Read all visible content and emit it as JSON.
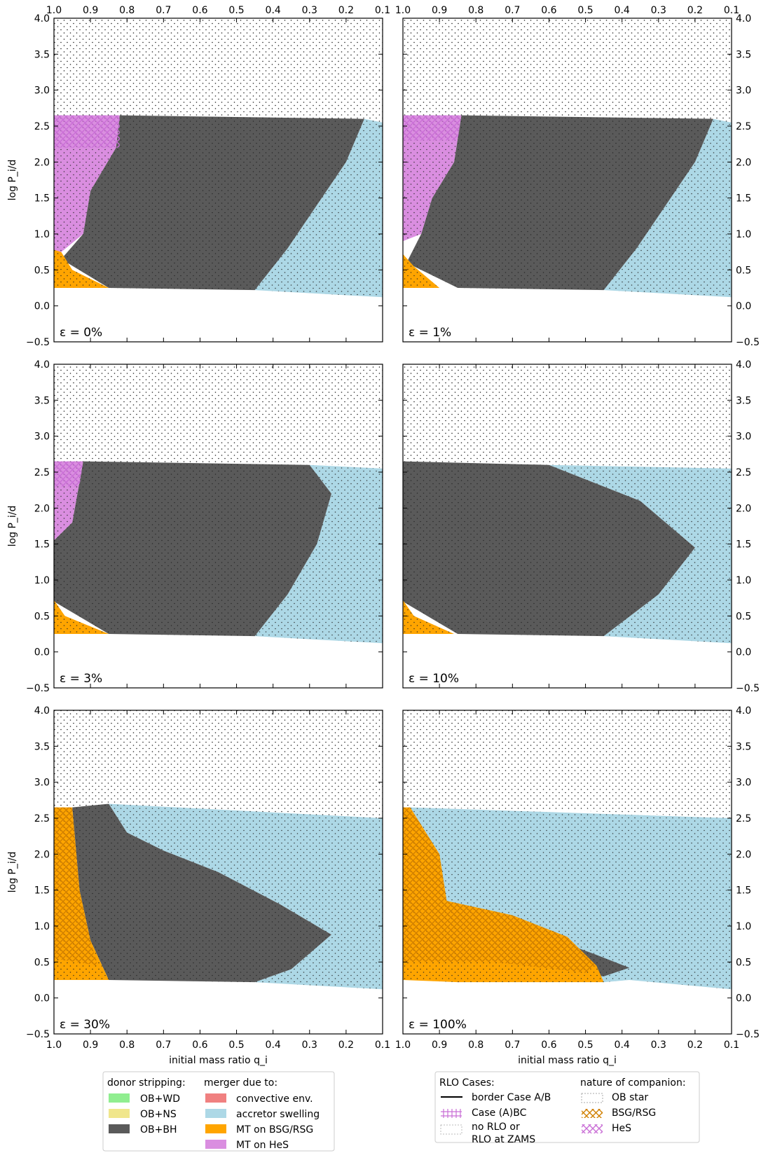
{
  "chart_data": {
    "type": "area",
    "layout": "3 rows x 2 columns of panels",
    "xlabel": "initial mass ratio q_i",
    "ylabel": "log P_i/d",
    "xlim": [
      1.0,
      0.1
    ],
    "ylim": [
      -0.5,
      4.0
    ],
    "x_ticks": [
      "1.0",
      "0.9",
      "0.8",
      "0.7",
      "0.6",
      "0.5",
      "0.4",
      "0.3",
      "0.2",
      "0.1"
    ],
    "y_ticks": [
      "-0.5",
      "0.0",
      "0.5",
      "1.0",
      "1.5",
      "2.0",
      "2.5",
      "3.0",
      "3.5",
      "4.0"
    ],
    "grid": false,
    "colors": {
      "ob_wd": "#90ee90",
      "ob_ns": "#f0e68c",
      "ob_bh": "#5a5a5a",
      "convective_env": "#f08080",
      "accretor_swelling": "#add8e6",
      "mt_bsg_rsg": "#ffa500",
      "mt_hes": "#da8ee0",
      "case_abc": "#c96fd6",
      "companion_bsg_rsg": "#e08a00",
      "companion_hes": "#c0a0d8"
    },
    "panels": [
      {
        "label": "ε = 0%",
        "regions": {
          "ob_star_region": [
            [
              1.0,
              4.0
            ],
            [
              0.1,
              4.0
            ],
            [
              0.1,
              2.55
            ],
            [
              0.15,
              2.6
            ],
            [
              1.0,
              2.65
            ]
          ],
          "ob_bh": [
            [
              0.82,
              2.65
            ],
            [
              0.15,
              2.6
            ],
            [
              0.2,
              2.0
            ],
            [
              0.28,
              1.4
            ],
            [
              0.36,
              0.8
            ],
            [
              0.45,
              0.22
            ],
            [
              0.85,
              0.25
            ],
            [
              0.98,
              0.65
            ],
            [
              0.92,
              1.0
            ],
            [
              0.9,
              1.6
            ],
            [
              0.83,
              2.2
            ]
          ],
          "accretor_swelling": [
            [
              0.15,
              2.6
            ],
            [
              0.1,
              2.55
            ],
            [
              0.1,
              0.12
            ],
            [
              0.45,
              0.22
            ],
            [
              0.36,
              0.8
            ],
            [
              0.28,
              1.4
            ],
            [
              0.2,
              2.0
            ]
          ],
          "mt_hes": [
            [
              1.0,
              2.65
            ],
            [
              0.82,
              2.65
            ],
            [
              0.83,
              2.2
            ],
            [
              0.9,
              1.6
            ],
            [
              0.92,
              1.0
            ],
            [
              0.98,
              0.75
            ],
            [
              1.0,
              0.78
            ]
          ],
          "mt_bsg_rsg": [
            [
              1.0,
              0.78
            ],
            [
              0.98,
              0.75
            ],
            [
              0.95,
              0.5
            ],
            [
              0.85,
              0.25
            ],
            [
              1.0,
              0.25
            ]
          ],
          "hes_hatch": [
            [
              1.0,
              2.65
            ],
            [
              0.82,
              2.65
            ],
            [
              0.82,
              2.2
            ],
            [
              1.0,
              2.2
            ]
          ]
        }
      },
      {
        "label": "ε = 1%",
        "regions": {
          "ob_star_region": [
            [
              1.0,
              4.0
            ],
            [
              0.1,
              4.0
            ],
            [
              0.1,
              2.55
            ],
            [
              0.15,
              2.6
            ],
            [
              1.0,
              2.65
            ]
          ],
          "ob_bh": [
            [
              0.84,
              2.65
            ],
            [
              0.15,
              2.6
            ],
            [
              0.2,
              2.0
            ],
            [
              0.28,
              1.4
            ],
            [
              0.36,
              0.8
            ],
            [
              0.45,
              0.22
            ],
            [
              0.85,
              0.25
            ],
            [
              0.99,
              0.6
            ],
            [
              0.95,
              1.0
            ],
            [
              0.92,
              1.5
            ],
            [
              0.86,
              2.0
            ]
          ],
          "accretor_swelling": [
            [
              0.15,
              2.6
            ],
            [
              0.1,
              2.55
            ],
            [
              0.1,
              0.12
            ],
            [
              0.45,
              0.22
            ],
            [
              0.36,
              0.8
            ],
            [
              0.28,
              1.4
            ],
            [
              0.2,
              2.0
            ]
          ],
          "mt_hes": [
            [
              1.0,
              2.65
            ],
            [
              0.84,
              2.65
            ],
            [
              0.86,
              2.0
            ],
            [
              0.92,
              1.5
            ],
            [
              0.95,
              1.0
            ],
            [
              1.0,
              0.9
            ]
          ],
          "mt_bsg_rsg": [
            [
              1.0,
              0.72
            ],
            [
              0.97,
              0.55
            ],
            [
              0.9,
              0.25
            ],
            [
              1.0,
              0.25
            ]
          ],
          "hes_hatch": [
            [
              1.0,
              2.65
            ],
            [
              0.84,
              2.65
            ],
            [
              0.85,
              2.3
            ],
            [
              1.0,
              2.3
            ]
          ]
        }
      },
      {
        "label": "ε = 3%",
        "regions": {
          "ob_star_region": [
            [
              1.0,
              4.0
            ],
            [
              0.1,
              4.0
            ],
            [
              0.1,
              2.55
            ],
            [
              0.15,
              2.6
            ],
            [
              1.0,
              2.65
            ]
          ],
          "ob_bh": [
            [
              0.92,
              2.65
            ],
            [
              0.3,
              2.6
            ],
            [
              0.24,
              2.2
            ],
            [
              0.28,
              1.5
            ],
            [
              0.36,
              0.8
            ],
            [
              0.45,
              0.22
            ],
            [
              0.85,
              0.25
            ],
            [
              1.0,
              0.7
            ],
            [
              1.0,
              1.55
            ],
            [
              0.95,
              1.8
            ]
          ],
          "accretor_swelling": [
            [
              0.3,
              2.6
            ],
            [
              0.1,
              2.55
            ],
            [
              0.1,
              0.12
            ],
            [
              0.45,
              0.22
            ],
            [
              0.36,
              0.8
            ],
            [
              0.28,
              1.5
            ],
            [
              0.24,
              2.2
            ]
          ],
          "mt_hes": [
            [
              1.0,
              2.65
            ],
            [
              0.92,
              2.65
            ],
            [
              0.95,
              1.8
            ],
            [
              1.0,
              1.55
            ]
          ],
          "mt_bsg_rsg": [
            [
              1.0,
              0.72
            ],
            [
              0.97,
              0.5
            ],
            [
              0.85,
              0.25
            ],
            [
              1.0,
              0.25
            ]
          ],
          "hes_hatch": [
            [
              1.0,
              2.65
            ],
            [
              0.92,
              2.65
            ],
            [
              0.93,
              2.3
            ],
            [
              1.0,
              2.3
            ]
          ]
        }
      },
      {
        "label": "ε = 10%",
        "regions": {
          "ob_star_region": [
            [
              1.0,
              4.0
            ],
            [
              0.1,
              4.0
            ],
            [
              0.1,
              2.55
            ],
            [
              0.55,
              2.6
            ],
            [
              1.0,
              2.65
            ]
          ],
          "ob_bh": [
            [
              1.0,
              2.65
            ],
            [
              0.6,
              2.6
            ],
            [
              0.35,
              2.1
            ],
            [
              0.2,
              1.45
            ],
            [
              0.3,
              0.8
            ],
            [
              0.45,
              0.22
            ],
            [
              0.85,
              0.25
            ],
            [
              1.0,
              0.7
            ]
          ],
          "accretor_swelling": [
            [
              0.6,
              2.6
            ],
            [
              0.1,
              2.55
            ],
            [
              0.1,
              0.12
            ],
            [
              0.45,
              0.22
            ],
            [
              0.3,
              0.8
            ],
            [
              0.2,
              1.45
            ],
            [
              0.35,
              2.1
            ]
          ],
          "mt_bsg_rsg": [
            [
              1.0,
              0.72
            ],
            [
              0.97,
              0.5
            ],
            [
              0.86,
              0.25
            ],
            [
              1.0,
              0.25
            ]
          ]
        }
      },
      {
        "label": "ε = 30%",
        "regions": {
          "ob_star_region": [
            [
              1.0,
              4.0
            ],
            [
              0.1,
              4.0
            ],
            [
              0.1,
              2.5
            ],
            [
              0.5,
              2.6
            ],
            [
              1.0,
              2.65
            ]
          ],
          "ob_bh": [
            [
              0.95,
              2.65
            ],
            [
              0.85,
              2.7
            ],
            [
              0.8,
              2.3
            ],
            [
              0.7,
              2.05
            ],
            [
              0.55,
              1.75
            ],
            [
              0.38,
              1.3
            ],
            [
              0.24,
              0.88
            ],
            [
              0.35,
              0.4
            ],
            [
              0.45,
              0.22
            ],
            [
              0.85,
              0.25
            ],
            [
              0.9,
              0.8
            ],
            [
              0.93,
              1.5
            ]
          ],
          "accretor_swelling": [
            [
              0.85,
              2.7
            ],
            [
              0.1,
              2.5
            ],
            [
              0.1,
              0.12
            ],
            [
              0.45,
              0.22
            ],
            [
              0.35,
              0.4
            ],
            [
              0.24,
              0.88
            ],
            [
              0.38,
              1.3
            ],
            [
              0.55,
              1.75
            ],
            [
              0.7,
              2.05
            ],
            [
              0.8,
              2.3
            ]
          ],
          "mt_bsg_rsg": [
            [
              1.0,
              2.65
            ],
            [
              0.95,
              2.65
            ],
            [
              0.93,
              1.5
            ],
            [
              0.9,
              0.8
            ],
            [
              0.85,
              0.25
            ],
            [
              1.0,
              0.25
            ]
          ],
          "bsg_hatch": [
            [
              1.0,
              2.65
            ],
            [
              0.95,
              2.65
            ],
            [
              0.93,
              1.5
            ],
            [
              0.9,
              0.8
            ],
            [
              0.88,
              0.45
            ],
            [
              1.0,
              0.55
            ]
          ]
        }
      },
      {
        "label": "ε = 100%",
        "regions": {
          "ob_star_region": [
            [
              1.0,
              4.0
            ],
            [
              0.1,
              4.0
            ],
            [
              0.1,
              2.5
            ],
            [
              0.5,
              2.6
            ],
            [
              1.0,
              2.65
            ]
          ],
          "accretor_swelling": [
            [
              0.98,
              2.65
            ],
            [
              0.1,
              2.5
            ],
            [
              0.1,
              0.12
            ],
            [
              0.38,
              0.25
            ],
            [
              0.45,
              0.22
            ],
            [
              0.88,
              0.4
            ],
            [
              0.9,
              1.3
            ],
            [
              0.9,
              2.0
            ]
          ],
          "mt_bsg_rsg": [
            [
              1.0,
              2.65
            ],
            [
              0.98,
              2.65
            ],
            [
              0.9,
              2.0
            ],
            [
              0.88,
              1.35
            ],
            [
              0.7,
              1.15
            ],
            [
              0.55,
              0.85
            ],
            [
              0.47,
              0.45
            ],
            [
              0.45,
              0.22
            ],
            [
              0.85,
              0.22
            ],
            [
              1.0,
              0.25
            ]
          ],
          "bsg_hatch": [
            [
              1.0,
              2.65
            ],
            [
              0.98,
              2.65
            ],
            [
              0.9,
              2.0
            ],
            [
              0.88,
              1.35
            ],
            [
              0.7,
              1.15
            ],
            [
              0.55,
              0.85
            ],
            [
              0.47,
              0.45
            ],
            [
              0.5,
              0.35
            ],
            [
              0.75,
              0.5
            ],
            [
              1.0,
              0.5
            ]
          ],
          "ob_bh": [
            [
              0.55,
              0.75
            ],
            [
              0.47,
              0.6
            ],
            [
              0.38,
              0.42
            ],
            [
              0.45,
              0.3
            ],
            [
              0.58,
              0.38
            ]
          ],
          "mt_hes": [
            [
              1.0,
              0.7
            ],
            [
              0.9,
              0.85
            ],
            [
              0.75,
              0.8
            ],
            [
              0.6,
              0.55
            ],
            [
              0.45,
              0.25
            ],
            [
              0.85,
              0.22
            ],
            [
              1.0,
              0.5
            ]
          ]
        }
      }
    ],
    "legend_left": {
      "col1_title": "donor stripping:",
      "col1_items": [
        "OB+WD",
        "OB+NS",
        "OB+BH"
      ],
      "col2_title": "merger due to:",
      "col2_items": [
        "convective env.",
        "accretor swelling",
        "MT on BSG/RSG",
        "MT on HeS"
      ]
    },
    "legend_right": {
      "col1_title": "RLO Cases:",
      "col1_items": [
        "border Case A/B",
        "Case (A)BC",
        "no RLO or",
        "RLO at ZAMS"
      ],
      "col2_title": "nature of companion:",
      "col2_items": [
        "OB star",
        "BSG/RSG",
        "HeS"
      ]
    },
    "legend_placement": "bottom"
  }
}
